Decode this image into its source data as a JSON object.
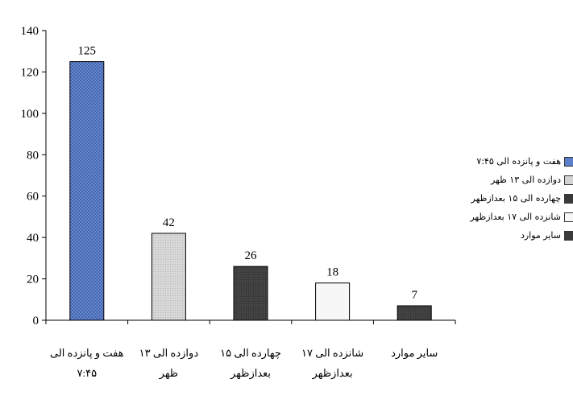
{
  "chart_data": {
    "type": "bar",
    "title": "",
    "xlabel": "",
    "ylabel": "",
    "ylim": [
      0,
      140
    ],
    "yticks": [
      0,
      20,
      40,
      60,
      80,
      100,
      120,
      140
    ],
    "grid": false,
    "legend_position": "right",
    "categories": [
      "هفت و پانزده الی ۷:۴۵",
      "دوازده الی ۱۳ ظهر",
      "چهارده الی ۱۵ بعدازظهر",
      "شانزده الی ۱۷ بعدازظهر",
      "سایر موارد"
    ],
    "category_label_lines": [
      [
        "هفت و پانزده الی",
        "۷:۴۵"
      ],
      [
        "دوازده الی ۱۳",
        "ظهر"
      ],
      [
        "چهارده الی ۱۵",
        "بعدازظهر"
      ],
      [
        "شانزده الی ۱۷",
        "بعدازظهر"
      ],
      [
        "سایر موارد"
      ]
    ],
    "values": [
      125,
      42,
      26,
      18,
      7
    ],
    "colors": [
      "#5b7fc8",
      "#d4d4d4",
      "#3a3a3a",
      "#f7f7f7",
      "#3c3c3c"
    ],
    "legend": [
      "هفت و پانزده الی ۷:۴۵",
      "دوازده الی ۱۳ ظهر",
      "چهارده الی ۱۵ بعدازظهر",
      "شانزده الی ۱۷ بعدازظهر",
      "سایر موارد"
    ]
  }
}
